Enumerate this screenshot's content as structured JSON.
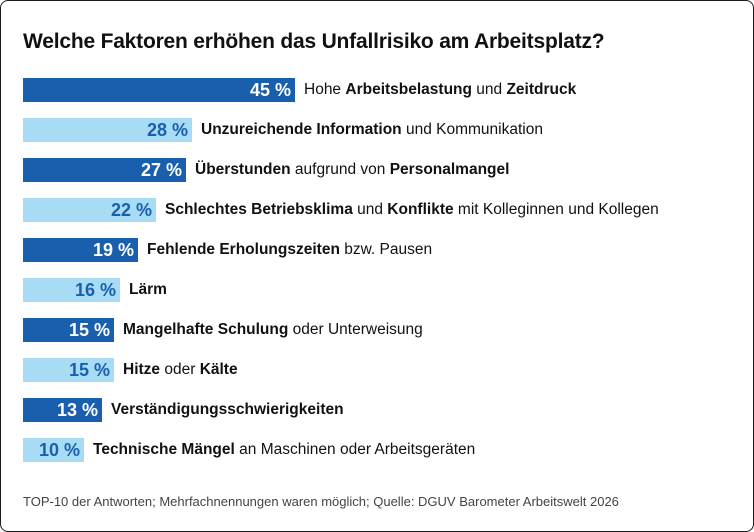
{
  "title": "Welche Faktoren erhöhen das Unfallrisiko am Arbeitsplatz?",
  "footnote": "TOP-10 der Antworten; Mehrfachnennungen waren möglich; Quelle: DGUV Barometer Arbeitswelt 2026",
  "colors": {
    "dark_bar": "#1a5fae",
    "light_bar": "#a8dcf4",
    "dark_text": "#ffffff",
    "light_text": "#1a5fae"
  },
  "chart_data": {
    "type": "bar",
    "orientation": "horizontal",
    "unit": "%",
    "title": "Welche Faktoren erhöhen das Unfallrisiko am Arbeitsplatz?",
    "categories": [
      "Hohe Arbeitsbelastung und Zeitdruck",
      "Unzureichende Information und Kommunikation",
      "Überstunden aufgrund von Personalmangel",
      "Schlechtes Betriebsklima und Konflikte mit Kolleginnen und Kollegen",
      "Fehlende Erholungszeiten bzw. Pausen",
      "Lärm",
      "Mangelhafte Schulung oder Unterweisung",
      "Hitze oder Kälte",
      "Verständigungsschwierigkeiten",
      "Technische Mängel an Maschinen oder Arbeitsgeräten"
    ],
    "values": [
      45,
      28,
      27,
      22,
      19,
      16,
      15,
      15,
      13,
      10
    ],
    "value_labels": [
      "45 %",
      "28 %",
      "27 %",
      "22 %",
      "19 %",
      "16 %",
      "15 %",
      "15 %",
      "13 %",
      "10 %"
    ],
    "shades": [
      "dark",
      "light",
      "dark",
      "light",
      "dark",
      "light",
      "dark",
      "light",
      "dark",
      "light"
    ],
    "label_segments": [
      [
        {
          "t": "Hohe ",
          "b": false
        },
        {
          "t": "Arbeitsbelastung",
          "b": true
        },
        {
          "t": " und ",
          "b": false
        },
        {
          "t": "Zeitdruck",
          "b": true
        }
      ],
      [
        {
          "t": "Unzureichende Information",
          "b": true
        },
        {
          "t": " und Kommunikation",
          "b": false
        }
      ],
      [
        {
          "t": "Überstunden",
          "b": true
        },
        {
          "t": " aufgrund von ",
          "b": false
        },
        {
          "t": "Personalmangel",
          "b": true
        }
      ],
      [
        {
          "t": "Schlechtes Betriebsklima",
          "b": true
        },
        {
          "t": " und ",
          "b": false
        },
        {
          "t": "Konflikte",
          "b": true
        },
        {
          "t": " mit Kolleginnen und Kollegen",
          "b": false
        }
      ],
      [
        {
          "t": "Fehlende Erholungszeiten",
          "b": true
        },
        {
          "t": " bzw. Pausen",
          "b": false
        }
      ],
      [
        {
          "t": "Lärm",
          "b": true
        }
      ],
      [
        {
          "t": "Mangelhafte Schulung",
          "b": true
        },
        {
          "t": " oder Unterweisung",
          "b": false
        }
      ],
      [
        {
          "t": "Hitze",
          "b": true
        },
        {
          "t": " oder ",
          "b": false
        },
        {
          "t": "Kälte",
          "b": true
        }
      ],
      [
        {
          "t": "Verständigungsschwierigkeiten",
          "b": true
        }
      ],
      [
        {
          "t": "Technische Mängel",
          "b": true
        },
        {
          "t": " an Maschinen oder Arbeitsgeräten",
          "b": false
        }
      ]
    ]
  }
}
